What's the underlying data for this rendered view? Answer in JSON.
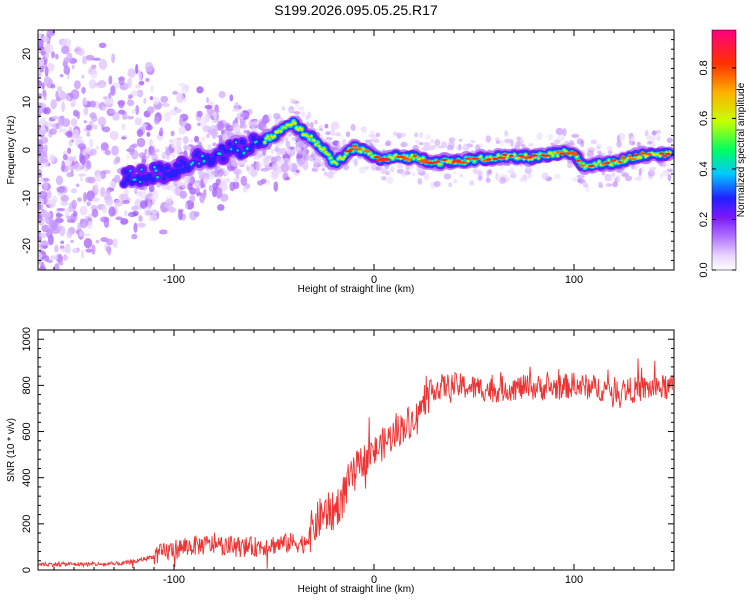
{
  "title": "S199.2026.095.05.25.R17",
  "chart_data": [
    {
      "type": "heatmap",
      "xlabel": "Height of straight line (km)",
      "ylabel": "Frequency (Hz)",
      "xlim": [
        -168,
        150
      ],
      "ylim": [
        -25,
        25
      ],
      "xticks": [
        -100,
        0,
        100
      ],
      "yticks": [
        -20,
        -10,
        0,
        10,
        20
      ],
      "colorbar": {
        "label": "Normalized spectral amplitude",
        "range": [
          0,
          0.95
        ],
        "ticks": [
          0.0,
          0.2,
          0.4,
          0.6,
          0.8
        ],
        "colors": [
          "#ffffff",
          "#e8d4ff",
          "#b070ff",
          "#7a18ff",
          "#2020ff",
          "#00c8ff",
          "#00ff60",
          "#c8ff00",
          "#ffb000",
          "#ff3000",
          "#ff0080"
        ]
      },
      "ridge": {
        "x": [
          -125,
          -110,
          -100,
          -90,
          -80,
          -70,
          -60,
          -50,
          -45,
          -40,
          -35,
          -30,
          -25,
          -20,
          -17,
          -14,
          -10,
          -5,
          0,
          5,
          10,
          20,
          30,
          40,
          50,
          60,
          70,
          80,
          90,
          95,
          100,
          105,
          110,
          120,
          130,
          140,
          148
        ],
        "y": [
          -6,
          -5,
          -4,
          -2,
          -1,
          0,
          1,
          3,
          4.5,
          5.5,
          3.5,
          2,
          0,
          -3,
          -2,
          -1,
          0.5,
          0,
          -1.5,
          -2,
          -1.5,
          -1.5,
          -2.5,
          -2.5,
          -2,
          -1.5,
          -1.5,
          -1.5,
          -1,
          -0.5,
          -1,
          -3.5,
          -3,
          -2.5,
          -1.5,
          -0.5,
          -1
        ]
      }
    },
    {
      "type": "line",
      "xlabel": "Height of straight line (km)",
      "ylabel": "SNR (10 * v/v)",
      "xlim": [
        -168,
        150
      ],
      "ylim": [
        0,
        1040
      ],
      "xticks": [
        -100,
        0,
        100
      ],
      "yticks": [
        0,
        200,
        400,
        600,
        800,
        1000
      ],
      "color": "#ee3333",
      "trend": {
        "x": [
          -168,
          -130,
          -120,
          -110,
          -100,
          -90,
          -80,
          -70,
          -60,
          -50,
          -40,
          -35,
          -30,
          -25,
          -20,
          -15,
          -10,
          -5,
          0,
          10,
          20,
          25,
          30,
          40,
          50,
          60,
          70,
          80,
          90,
          100,
          110,
          120,
          130,
          140,
          150
        ],
        "y": [
          25,
          25,
          35,
          60,
          90,
          105,
          110,
          100,
          100,
          110,
          120,
          115,
          190,
          250,
          250,
          330,
          430,
          480,
          510,
          590,
          660,
          720,
          790,
          800,
          790,
          780,
          790,
          790,
          790,
          800,
          790,
          780,
          780,
          790,
          790
        ]
      }
    }
  ]
}
